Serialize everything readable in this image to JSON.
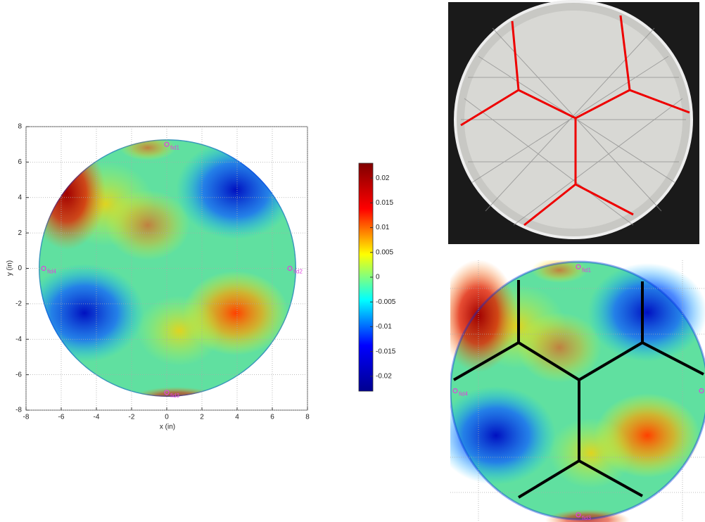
{
  "chart_data": {
    "type": "heatmap",
    "xlabel": "x (in)",
    "ylabel": "y (in)",
    "xlim": [
      -8,
      8
    ],
    "ylim": [
      -8,
      8
    ],
    "xticks": [
      -8,
      -6,
      -4,
      -2,
      0,
      2,
      4,
      6,
      8
    ],
    "yticks": [
      -8,
      -6,
      -4,
      -2,
      0,
      2,
      4,
      6,
      8
    ],
    "grid": true,
    "clim": [
      -0.023,
      0.023
    ],
    "cticks": [
      -0.02,
      -0.015,
      -0.01,
      -0.005,
      0,
      0.005,
      0.01,
      0.015,
      0.02
    ],
    "colormap": [
      "#00008f",
      "#0000ff",
      "#00ffff",
      "#ffff00",
      "#ff0000",
      "#800000"
    ],
    "annotations": [
      {
        "text": "fid1",
        "x": 0,
        "y": 7
      },
      {
        "text": "fid2",
        "x": 7,
        "y": 0
      },
      {
        "text": "fid3",
        "x": 0,
        "y": -7
      },
      {
        "text": "fid4",
        "x": -7,
        "y": 0
      }
    ]
  }
}
